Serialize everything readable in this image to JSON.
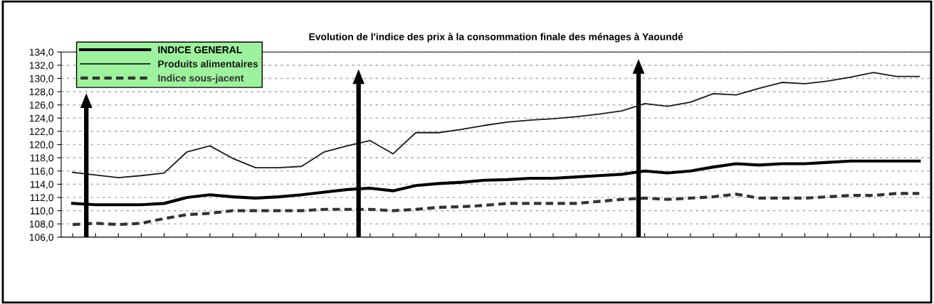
{
  "chart_data": {
    "type": "line",
    "title": "Evolution de l'indice des prix à la consommation finale des ménages à Yaoundé",
    "categories": [
      null,
      null,
      null,
      null,
      null,
      null,
      null,
      null,
      null,
      null,
      null,
      null,
      null,
      null,
      null,
      null,
      null,
      null,
      null,
      null,
      null,
      null,
      null,
      null,
      null,
      null,
      null,
      null,
      null,
      null,
      null,
      null,
      null,
      null,
      null,
      null,
      null,
      null
    ],
    "series": [
      {
        "name": "INDICE GENERAL",
        "color": "#000000",
        "line_style": "solid",
        "values": [
          111.1,
          110.9,
          110.9,
          110.9,
          111.1,
          112.0,
          112.4,
          112.1,
          111.9,
          112.1,
          112.4,
          112.8,
          113.2,
          113.4,
          113.0,
          113.8,
          114.1,
          114.3,
          114.6,
          114.7,
          114.9,
          114.9,
          115.1,
          115.3,
          115.5,
          116.0,
          115.7,
          116.0,
          116.6,
          117.1,
          116.9,
          117.1,
          117.1,
          117.3,
          117.5,
          117.5,
          117.5,
          117.5
        ]
      },
      {
        "name": "Produits alimentaires",
        "color": "#1a1a1a",
        "line_style": "solid",
        "values": [
          115.8,
          115.4,
          115.0,
          115.3,
          115.7,
          118.9,
          119.8,
          117.9,
          116.5,
          116.5,
          116.7,
          118.9,
          119.8,
          120.6,
          118.6,
          121.8,
          121.8,
          122.3,
          122.9,
          123.4,
          123.7,
          123.9,
          124.2,
          124.6,
          125.1,
          126.2,
          125.8,
          126.4,
          127.7,
          127.5,
          128.5,
          129.4,
          129.2,
          129.6,
          130.2,
          130.9,
          130.3,
          130.3
        ]
      },
      {
        "name": "Indice sous-jacent",
        "color": "#333333",
        "line_style": "dashed",
        "values": [
          107.9,
          108.1,
          107.9,
          108.1,
          108.8,
          109.4,
          109.6,
          110.0,
          110.0,
          110.0,
          110.0,
          110.2,
          110.2,
          110.2,
          110.0,
          110.2,
          110.5,
          110.6,
          110.8,
          111.1,
          111.1,
          111.1,
          111.1,
          111.4,
          111.7,
          111.9,
          111.7,
          111.9,
          112.1,
          112.5,
          111.9,
          111.9,
          111.9,
          112.1,
          112.3,
          112.3,
          112.6,
          112.6
        ]
      }
    ],
    "ylim": [
      106,
      134
    ],
    "yticks": [
      {
        "value": 106,
        "label": "106,0"
      },
      {
        "value": 108,
        "label": "108,0"
      },
      {
        "value": 110,
        "label": "110,0"
      },
      {
        "value": 112,
        "label": "112,0"
      },
      {
        "value": 114,
        "label": "114,0"
      },
      {
        "value": 116,
        "label": "116,0"
      },
      {
        "value": 118,
        "label": "118,0"
      },
      {
        "value": 120,
        "label": "120,0"
      },
      {
        "value": 122,
        "label": "122,0"
      },
      {
        "value": 124,
        "label": "124,0"
      },
      {
        "value": 126,
        "label": "126,0"
      },
      {
        "value": 128,
        "label": "128,0"
      },
      {
        "value": 130,
        "label": "130,0"
      },
      {
        "value": 132,
        "label": "132,0"
      },
      {
        "value": 134,
        "label": "134,0"
      }
    ],
    "grid": "y",
    "legend": "top left",
    "marker": "none"
  }
}
